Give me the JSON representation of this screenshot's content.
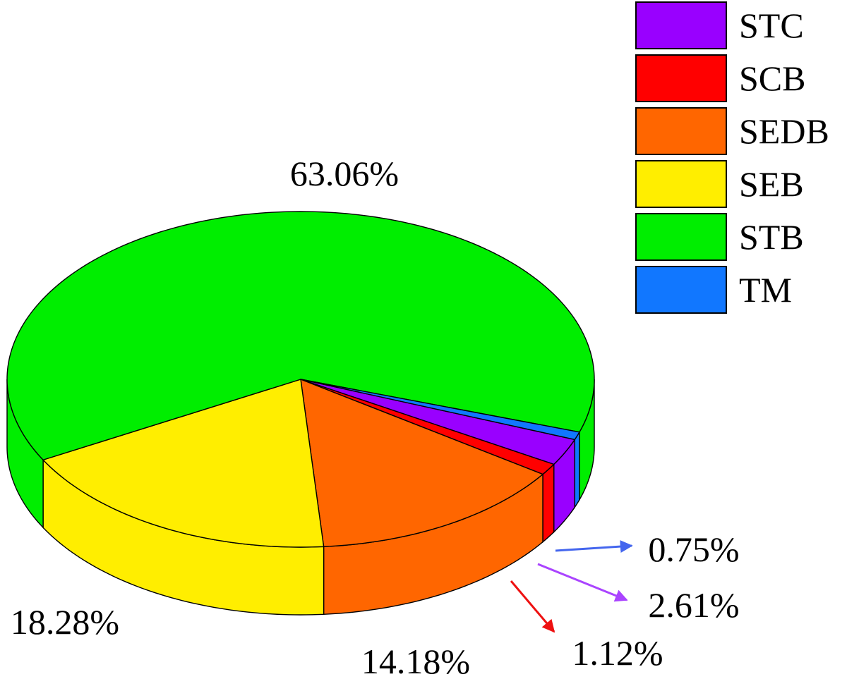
{
  "chart_data": {
    "type": "pie",
    "title": "",
    "categories": [
      "STC",
      "SCB",
      "SEDB",
      "SEB",
      "STB",
      "TM"
    ],
    "values": [
      2.61,
      1.12,
      14.18,
      18.28,
      63.06,
      0.75
    ],
    "labels": [
      "2.61%",
      "1.12%",
      "14.18%",
      "18.28%",
      "63.06%",
      "0.75%"
    ],
    "colors": [
      "#9900ff",
      "#ff0000",
      "#ff6600",
      "#ffee00",
      "#00ee00",
      "#1177ff"
    ],
    "legend": {
      "position": "top-right",
      "items": [
        {
          "label": "STC",
          "color": "#9900ff"
        },
        {
          "label": "SCB",
          "color": "#ff0000"
        },
        {
          "label": "SEDB",
          "color": "#ff6600"
        },
        {
          "label": "SEB",
          "color": "#ffee00"
        },
        {
          "label": "STB",
          "color": "#00ee00"
        },
        {
          "label": "TM",
          "color": "#1177ff"
        }
      ]
    },
    "style": "3d"
  }
}
